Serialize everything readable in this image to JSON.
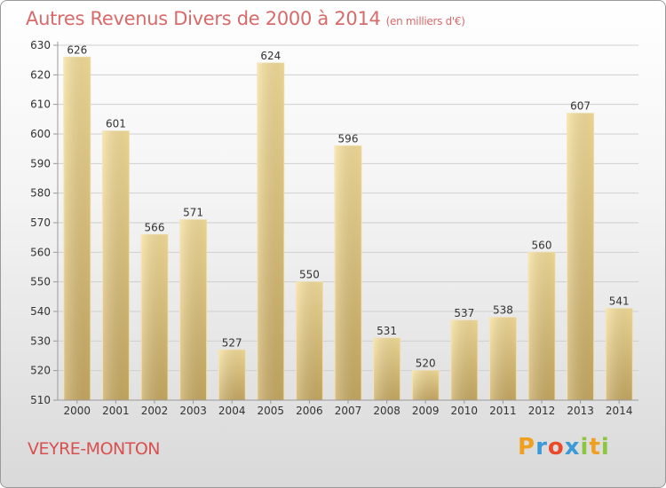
{
  "title": "Autres Revenus Divers de 2000 à 2014",
  "subtitle": "(en milliers d'€)",
  "town": "VEYRE-MONTON",
  "logo": {
    "letters": [
      "P",
      "r",
      "o",
      "x",
      "i",
      "t",
      "i"
    ],
    "colors": [
      "#f0a020",
      "#3a9ad8",
      "#e84a2a",
      "#3a9ad8",
      "#8cc63f",
      "#f0a020",
      "#8cc63f"
    ]
  },
  "colors": {
    "bar": "#e8c97a",
    "label": "#333333",
    "grid": "#cfcfcf"
  },
  "chart_data": {
    "type": "bar",
    "categories": [
      "2000",
      "2001",
      "2002",
      "2003",
      "2004",
      "2005",
      "2006",
      "2007",
      "2008",
      "2009",
      "2010",
      "2011",
      "2012",
      "2013",
      "2014"
    ],
    "values": [
      626,
      601,
      566,
      571,
      527,
      624,
      550,
      596,
      531,
      520,
      537,
      538,
      560,
      607,
      541
    ],
    "ylim": [
      510,
      630
    ],
    "yticks": [
      510,
      520,
      530,
      540,
      550,
      560,
      570,
      580,
      590,
      600,
      610,
      620,
      630
    ],
    "grid": true,
    "title": "Autres Revenus Divers de 2000 à 2014",
    "xlabel": "",
    "ylabel": ""
  }
}
